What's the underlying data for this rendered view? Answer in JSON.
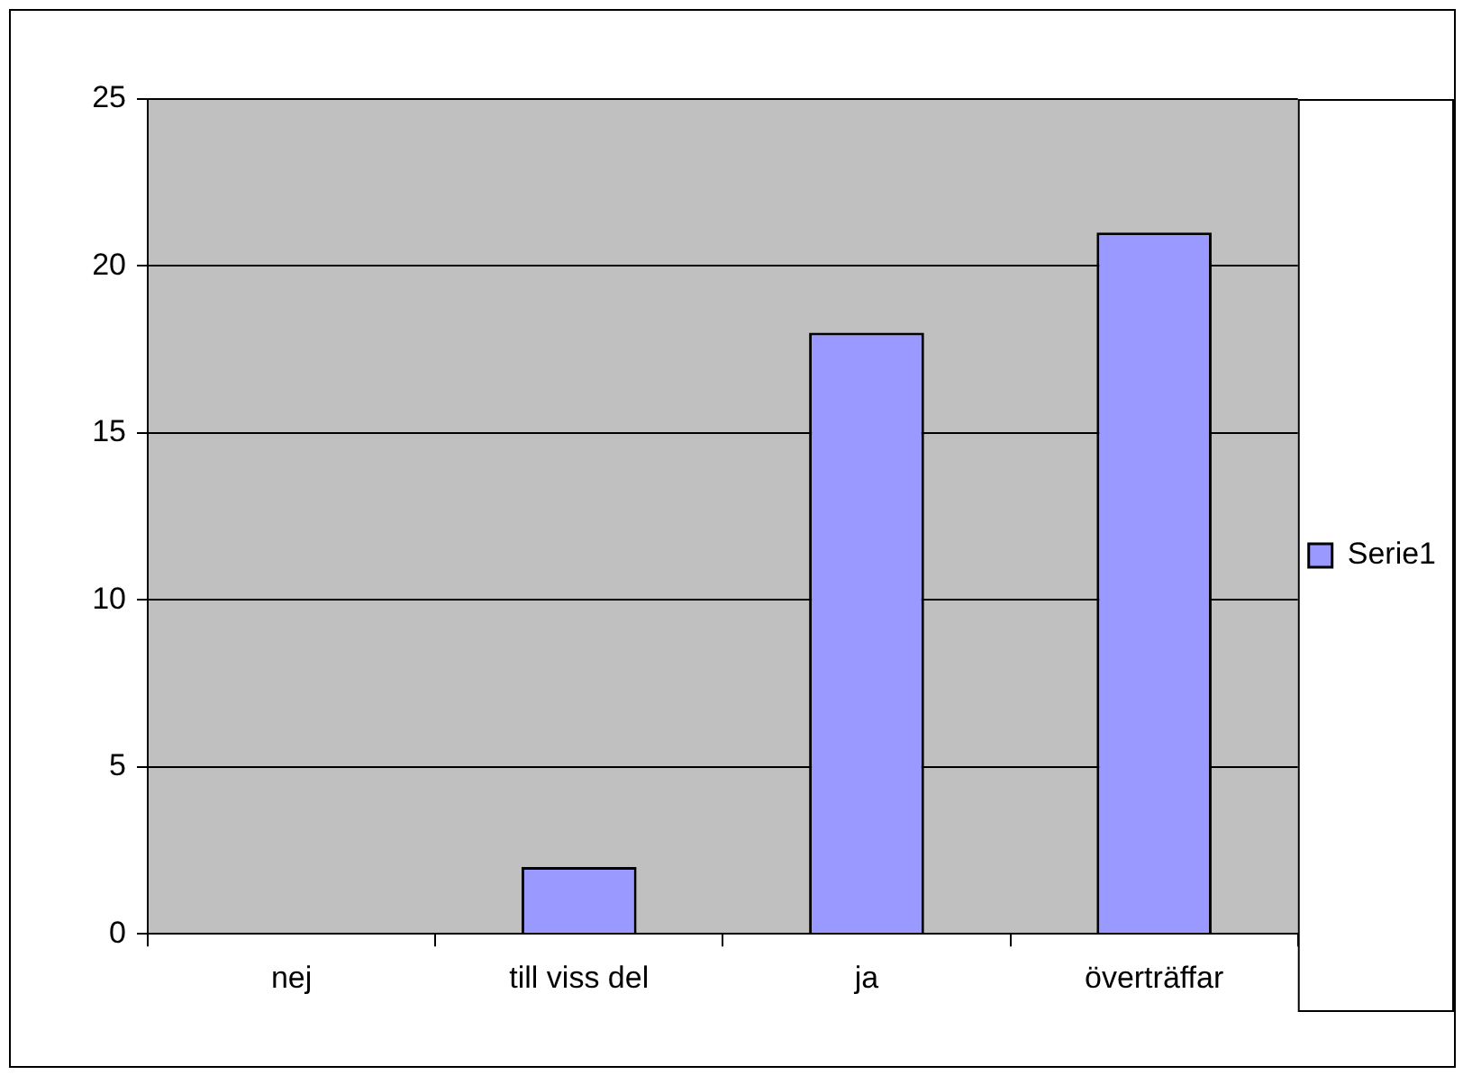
{
  "chart_data": {
    "type": "bar",
    "categories": [
      "nej",
      "till viss del",
      "ja",
      "överträffar"
    ],
    "series": [
      {
        "name": "Serie1",
        "color": "#9999ff",
        "values": [
          0,
          2,
          18,
          21
        ]
      }
    ],
    "ylim": [
      0,
      25
    ],
    "yticks": [
      0,
      5,
      10,
      15,
      20,
      25
    ],
    "grid": "y",
    "legend": "right"
  }
}
